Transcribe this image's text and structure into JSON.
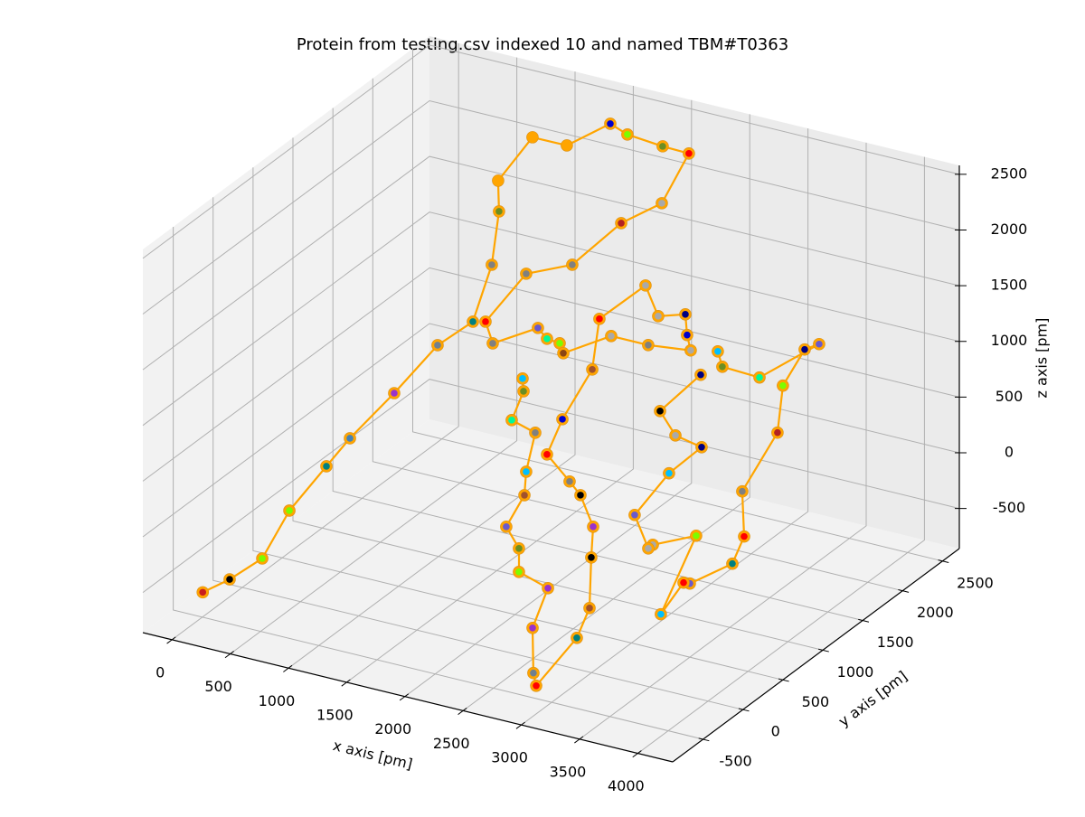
{
  "chart_data": {
    "type": "scatter3d",
    "title": "Protein from testing.csv indexed 10 and named TBM#T0363",
    "xlabel": "x axis [pm]",
    "ylabel": "y axis [pm]",
    "zlabel": "z axis [pm]",
    "xlim": [
      -250,
      4300
    ],
    "ylim": [
      -880,
      2710
    ],
    "zlim": [
      -860,
      2580
    ],
    "xticks": [
      0,
      500,
      1000,
      1500,
      2000,
      2500,
      3000,
      3500,
      4000
    ],
    "yticks": [
      -500,
      0,
      500,
      1000,
      1500,
      2000,
      2500
    ],
    "zticks": [
      -500,
      0,
      500,
      1000,
      1500,
      2000,
      2500
    ],
    "grid": true,
    "line_color": "#ffa500",
    "x": [
      -10,
      221,
      501,
      734,
      1052,
      1254,
      1634,
      1321,
      1213,
      964,
      1026,
      607,
      902,
      1197,
      1570,
      1717,
      2020,
      2245,
      2424,
      2075,
      1655,
      1259,
      910,
      972,
      1360,
      1438,
      1547,
      1578,
      1989,
      2307,
      2672,
      2641,
      2626,
      2393,
      2284,
      1888,
      2238,
      2393,
      2672,
      3209,
      3302,
      3411,
      3395,
      3380,
      3271,
      2922,
      2898,
      2891,
      3023,
      2774,
      2774,
      2665,
      2821,
      2836,
      2914,
      2712,
      2059,
      2051,
      null,
      3179,
      3218,
      3537,
      4049,
      3925,
      3738,
      4103,
      4006,
      4022,
      3921,
      3556,
      3502,
      3307,
      3610,
      3238,
      3199,
      3082,
      3377,
      3657,
      3432,
      3300,
      3032
    ],
    "y": [
      -480,
      -480,
      -480,
      -480,
      -480,
      -480,
      -480,
      520,
      1120,
      1720,
      1720,
      2320,
      2320,
      2320,
      2320,
      2320,
      2320,
      2320,
      1720,
      1720,
      1720,
      1720,
      1720,
      1720,
      1720,
      1720,
      1720,
      1720,
      1720,
      1720,
      1720,
      1720,
      1720,
      1720,
      1720,
      1720,
      1120,
      520,
      -80,
      -580,
      -580,
      -580,
      -580,
      -580,
      -580,
      -580,
      -580,
      -580,
      -580,
      -580,
      -580,
      -580,
      -580,
      -580,
      -580,
      -580,
      520,
      520,
      null,
      1320,
      1320,
      1320,
      1320,
      1320,
      1320,
      720,
      420,
      420,
      420,
      420,
      420,
      420,
      420,
      420,
      420,
      420,
      420,
      420,
      420,
      420,
      1320
    ],
    "z": [
      -650,
      -475,
      -216,
      273,
      752,
      1055,
      1557,
      1374,
      1238,
      1365,
      1860,
      1709,
      2174,
      2176,
      2466,
      2407,
      2378,
      2371,
      2290,
      2022,
      1542,
      1360,
      841,
      662,
      899,
      822,
      809,
      728,
      987,
      987,
      1032,
      1162,
      1344,
      1268,
      1516,
      1115,
      1070,
      983,
      1058,
      1219,
      1120,
      864,
      584,
      126,
      -169,
      -688,
      -580,
      -177,
      214,
      296,
      507,
      674,
      997,
      1212,
      1581,
      1643,
      1149,
      1261,
      null,
      1366,
      1238,
      1223,
      1653,
      1573,
      1201,
      1192,
      800,
      399,
      129,
      -142,
      -148,
      -481,
      301,
      125,
      82,
      353,
      802,
      1108,
      1156,
      1341,
      1118
    ],
    "colors": [
      "#c81e1e",
      "#000000",
      "#7cfc00",
      "#7cfc00",
      "#008080",
      "#4682b4",
      "#9932cc",
      "#708090",
      "#008080",
      "#808080",
      "#6b8e23",
      "#ffa500",
      "#ffa500",
      "#ffa500",
      "#0000cd",
      "#7cfc00",
      "#6b8e23",
      "#ff0000",
      "#a9a9a9",
      "#b22222",
      "#808080",
      "#808080",
      "#ff0000",
      "#808080",
      "#6a5acd",
      "#00fa9a",
      "#7cfc00",
      "#8b4513",
      "#a9a9a9",
      "#808080",
      "#a9a9a9",
      "#0000cd",
      "#000080",
      "#a9a9a9",
      "#a9a9a9",
      "#ff0000",
      "#a0522d",
      "#0000cd",
      "#ff0000",
      "#808080",
      "#000000",
      "#9932cc",
      "#000000",
      "#a0522d",
      "#008080",
      "#ff0000",
      "#708090",
      "#9932cc",
      "#9932cc",
      "#7cfc00",
      "#6b8e23",
      "#6a5acd",
      "#a0522d",
      "#00bfff",
      "#808080",
      "#00fa9a",
      "#6b8e23",
      "#00bfff",
      null,
      "#00bfff",
      "#6b8e23",
      "#00fa9a",
      "#6a5acd",
      "#000080",
      "#7cfc00",
      "#b22222",
      "#808080",
      "#ff0000",
      "#008080",
      "#6a5acd",
      "#ff0000",
      "#00bfff",
      "#7cfc00",
      "#a9a9a9",
      "#a9a9a9",
      "#6a5acd",
      "#00bfff",
      "#000080",
      "#a9a9a9",
      "#000000",
      "#000080"
    ]
  }
}
